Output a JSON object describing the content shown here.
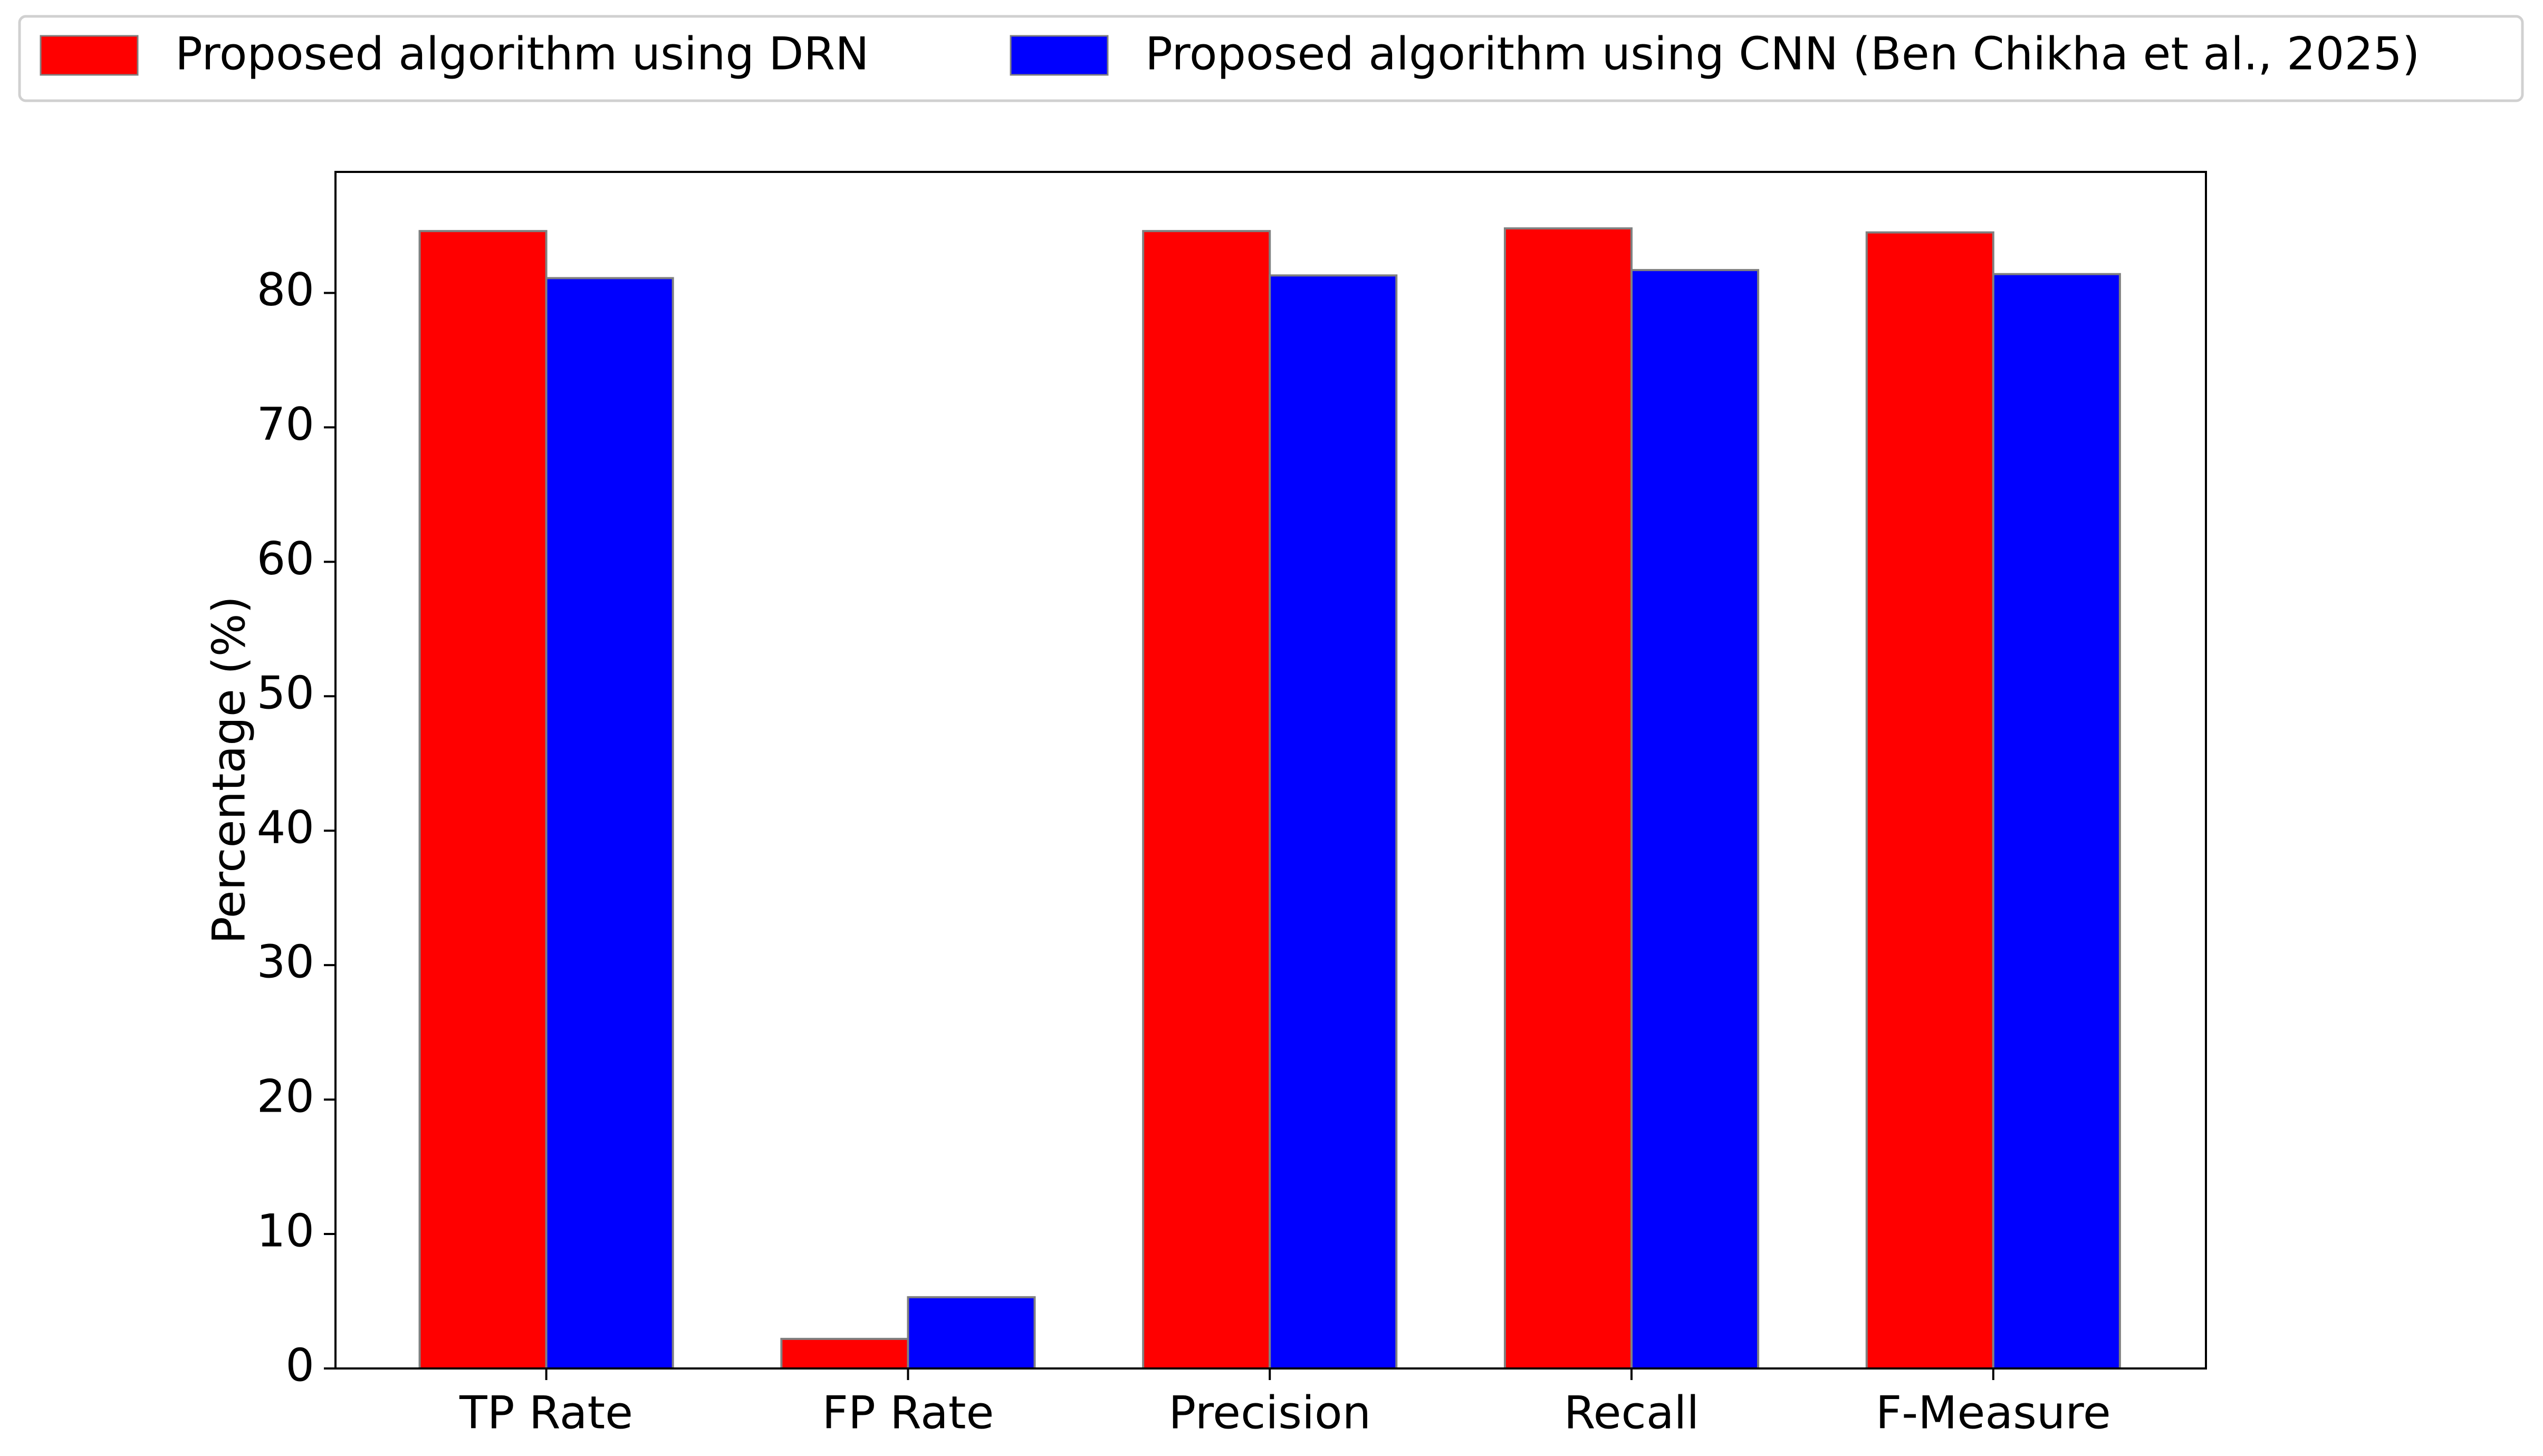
{
  "chart_data": {
    "type": "bar",
    "categories": [
      "TP Rate",
      "FP Rate",
      "Precision",
      "Recall",
      "F-Measure"
    ],
    "series": [
      {
        "name": "Proposed algorithm using DRN",
        "color": "#ff0000",
        "values": [
          84.6,
          2.2,
          84.6,
          84.8,
          84.5
        ]
      },
      {
        "name": "Proposed algorithm using CNN (Ben Chikha et al., 2025)",
        "color": "#0000ff",
        "values": [
          81.1,
          5.3,
          81.3,
          81.7,
          81.4
        ]
      }
    ],
    "ylabel": "Percentage (%)",
    "ylim": [
      0,
      89
    ],
    "yticks": [
      0,
      10,
      20,
      30,
      40,
      50,
      60,
      70,
      80
    ],
    "legend": "top"
  }
}
